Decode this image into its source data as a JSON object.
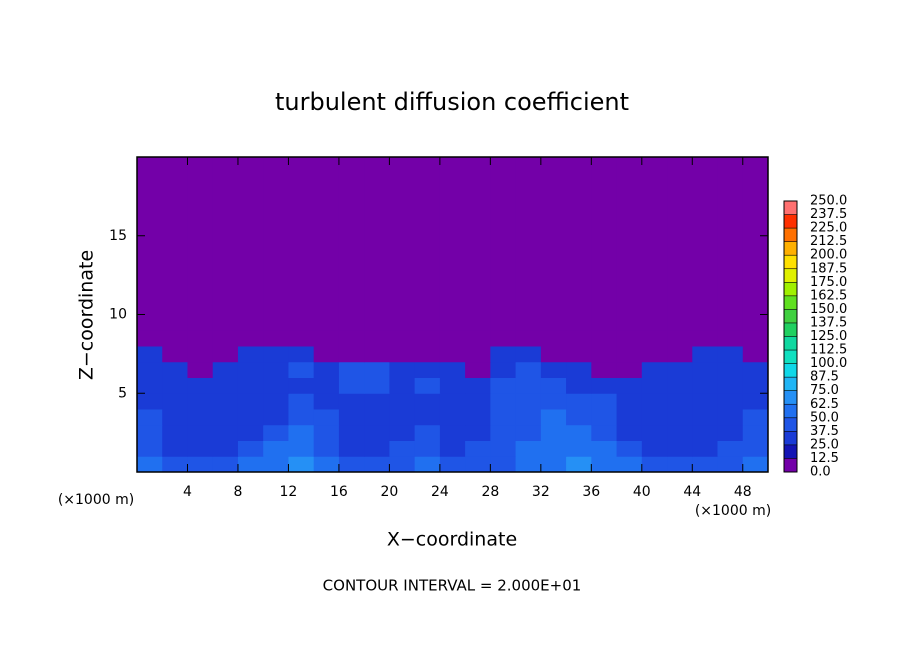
{
  "chart_data": {
    "type": "heatmap",
    "title": "turbulent diffusion coefficient",
    "xlabel": "X−coordinate",
    "ylabel": "Z−coordinate",
    "x_unit_left": "(×1000 m)",
    "x_unit_right": "(×1000 m)",
    "footer": "CONTOUR INTERVAL = 2.000E+01",
    "xlim": [
      0,
      50
    ],
    "ylim": [
      0,
      20
    ],
    "xticks": [
      4,
      8,
      12,
      16,
      20,
      24,
      28,
      32,
      36,
      40,
      44,
      48
    ],
    "yticks": [
      5,
      10,
      15
    ],
    "xbins": [
      0,
      2,
      4,
      6,
      8,
      10,
      12,
      14,
      16,
      18,
      20,
      22,
      24,
      26,
      28,
      30,
      32,
      34,
      36,
      38,
      40,
      42,
      44,
      46,
      48,
      50
    ],
    "ybins": [
      0,
      1,
      2,
      3,
      4,
      5,
      6,
      7,
      8,
      9,
      20
    ],
    "z": [
      [
        55,
        45,
        40,
        45,
        50,
        60,
        65,
        55,
        45,
        40,
        45,
        50,
        45,
        45,
        45,
        55,
        60,
        65,
        60,
        50,
        45,
        45,
        40,
        45,
        50
      ],
      [
        45,
        35,
        35,
        35,
        40,
        50,
        60,
        45,
        35,
        35,
        40,
        45,
        35,
        40,
        40,
        50,
        55,
        55,
        50,
        40,
        35,
        35,
        35,
        40,
        45
      ],
      [
        40,
        35,
        30,
        30,
        35,
        40,
        50,
        40,
        35,
        30,
        35,
        40,
        35,
        35,
        40,
        45,
        50,
        55,
        45,
        35,
        30,
        35,
        30,
        35,
        40
      ],
      [
        40,
        30,
        30,
        30,
        30,
        35,
        45,
        40,
        35,
        30,
        35,
        35,
        35,
        30,
        40,
        45,
        50,
        45,
        40,
        35,
        30,
        30,
        30,
        30,
        40
      ],
      [
        35,
        35,
        30,
        30,
        30,
        35,
        40,
        35,
        35,
        35,
        35,
        35,
        30,
        30,
        40,
        45,
        45,
        40,
        40,
        35,
        35,
        30,
        30,
        30,
        35
      ],
      [
        35,
        30,
        30,
        30,
        30,
        35,
        35,
        35,
        40,
        40,
        35,
        40,
        35,
        30,
        40,
        40,
        40,
        35,
        35,
        30,
        35,
        30,
        30,
        30,
        35
      ],
      [
        35,
        30,
        5,
        30,
        30,
        35,
        40,
        30,
        40,
        40,
        35,
        35,
        30,
        5,
        35,
        40,
        35,
        35,
        5,
        5,
        35,
        30,
        30,
        30,
        35
      ],
      [
        30,
        5,
        5,
        5,
        30,
        30,
        30,
        5,
        5,
        5,
        5,
        5,
        5,
        5,
        30,
        30,
        5,
        5,
        5,
        5,
        5,
        5,
        30,
        30,
        5
      ],
      [
        5,
        2,
        2,
        2,
        2,
        2,
        2,
        2,
        2,
        2,
        2,
        2,
        2,
        2,
        2,
        2,
        2,
        2,
        2,
        2,
        2,
        2,
        2,
        2,
        2
      ],
      [
        2,
        2,
        2,
        2,
        2,
        2,
        2,
        2,
        2,
        2,
        2,
        2,
        2,
        2,
        2,
        2,
        2,
        2,
        2,
        2,
        2,
        2,
        2,
        2,
        2
      ]
    ],
    "colorbar": {
      "ticks": [
        {
          "value": 0,
          "label": "0.0"
        },
        12.5,
        {
          "value": 25,
          "label": "25.0"
        },
        37.5,
        {
          "value": 50,
          "label": "50.0"
        },
        62.5,
        {
          "value": 75,
          "label": "75.0"
        },
        87.5,
        {
          "value": 100,
          "label": "100.0"
        },
        112.5,
        {
          "value": 125,
          "label": "125.0"
        },
        137.5,
        {
          "value": 150,
          "label": "150.0"
        },
        162.5,
        {
          "value": 175,
          "label": "175.0"
        },
        187.5,
        {
          "value": 200,
          "label": "200.0"
        },
        212.5,
        {
          "value": 225,
          "label": "225.0"
        },
        237.5,
        {
          "value": 250,
          "label": "250.0"
        }
      ],
      "colors": [
        "#7300a8",
        "#1414b4",
        "#1a3bd6",
        "#1f55e6",
        "#2070f0",
        "#2590f5",
        "#20b5f5",
        "#10d8e8",
        "#10e0c0",
        "#10d8a0",
        "#20d060",
        "#40d040",
        "#60e020",
        "#a0f000",
        "#e0f000",
        "#ffe000",
        "#ffb000",
        "#ff7000",
        "#ff3000",
        "#ff7070"
      ]
    }
  }
}
